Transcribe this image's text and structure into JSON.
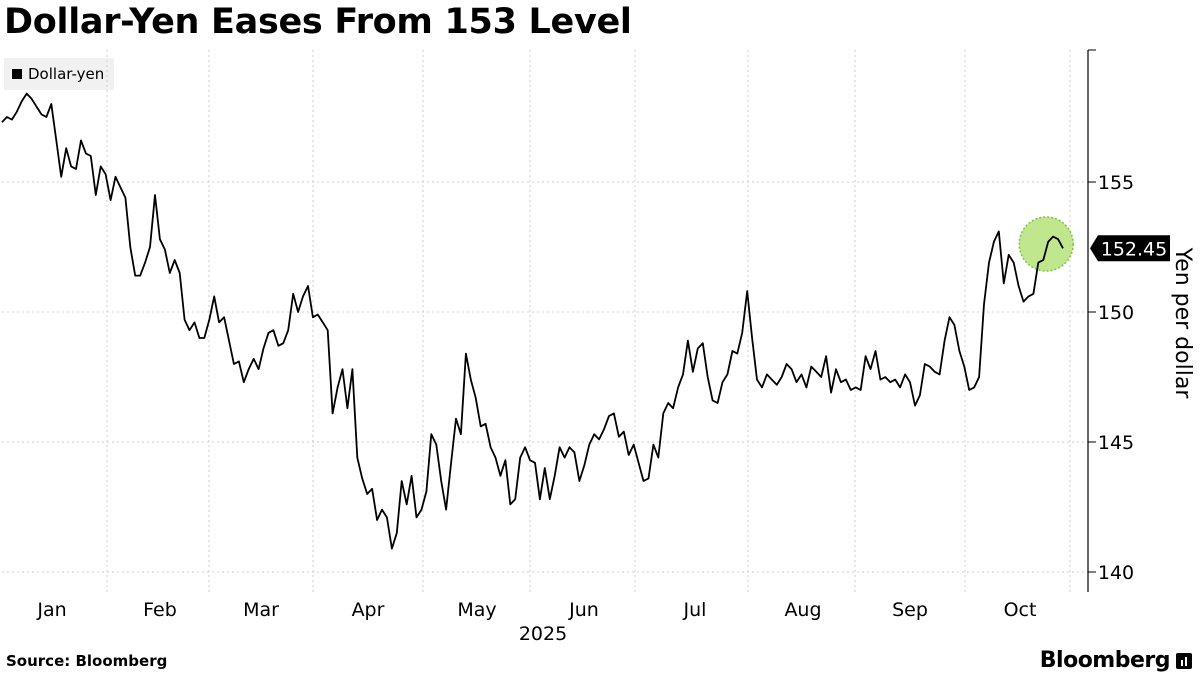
{
  "title": "Dollar-Yen Eases From 153 Level",
  "source": "Source: Bloomberg",
  "brand": "Bloomberg",
  "colors": {
    "line": "#000000",
    "grid": "#cfcfcf",
    "highlight": "#b5e27a",
    "highlight_stroke": "#7cc443"
  },
  "chart_data": {
    "type": "line",
    "series": [
      {
        "name": "Dollar-yen",
        "values": [
          157.3,
          157.5,
          157.4,
          157.7,
          158.1,
          158.4,
          158.2,
          157.9,
          157.6,
          157.5,
          158.0,
          156.6,
          155.2,
          156.3,
          155.6,
          155.5,
          156.6,
          156.1,
          156.0,
          154.5,
          155.6,
          155.3,
          154.3,
          155.2,
          154.8,
          154.4,
          152.5,
          151.4,
          151.4,
          151.9,
          152.5,
          154.5,
          152.8,
          152.4,
          151.5,
          152.0,
          151.5,
          149.7,
          149.3,
          149.6,
          149.0,
          149.0,
          149.7,
          150.6,
          149.6,
          149.8,
          148.9,
          148.0,
          148.1,
          147.3,
          147.8,
          148.2,
          147.8,
          148.6,
          149.2,
          149.3,
          148.7,
          148.8,
          149.3,
          150.7,
          150.0,
          150.6,
          151.0,
          149.8,
          149.9,
          149.6,
          149.3,
          146.1,
          147.1,
          147.8,
          146.3,
          147.8,
          144.4,
          143.6,
          143.0,
          143.2,
          142.0,
          142.4,
          142.1,
          140.9,
          141.5,
          143.5,
          142.6,
          143.7,
          142.1,
          142.4,
          143.1,
          145.3,
          144.9,
          143.5,
          142.4,
          144.2,
          145.9,
          145.3,
          148.4,
          147.4,
          146.7,
          145.6,
          145.7,
          144.8,
          144.4,
          143.7,
          144.3,
          142.6,
          142.8,
          144.4,
          144.8,
          144.3,
          144.2,
          142.8,
          144.0,
          142.8,
          143.7,
          144.8,
          144.4,
          144.8,
          144.6,
          143.5,
          144.1,
          144.9,
          145.3,
          145.1,
          145.5,
          146.0,
          146.1,
          145.2,
          145.4,
          144.5,
          144.9,
          144.2,
          143.5,
          143.6,
          144.9,
          144.4,
          146.1,
          146.5,
          146.3,
          147.1,
          147.6,
          148.9,
          147.7,
          148.6,
          148.8,
          147.5,
          146.6,
          146.5,
          147.3,
          147.6,
          148.5,
          148.4,
          149.2,
          150.8,
          149.0,
          147.4,
          147.1,
          147.6,
          147.4,
          147.2,
          147.5,
          148.0,
          147.8,
          147.3,
          147.6,
          147.1,
          147.9,
          147.7,
          147.5,
          148.3,
          146.9,
          147.8,
          147.3,
          147.4,
          147.0,
          147.1,
          147.0,
          148.3,
          147.8,
          148.5,
          147.4,
          147.5,
          147.3,
          147.4,
          147.1,
          147.6,
          147.3,
          146.4,
          146.8,
          148.0,
          147.9,
          147.7,
          147.6,
          148.9,
          149.8,
          149.5,
          148.5,
          147.9,
          147.0,
          147.1,
          147.5,
          150.3,
          151.9,
          152.7,
          153.1,
          151.1,
          152.2,
          151.9,
          151.0,
          150.4,
          150.6,
          150.7,
          151.9,
          152.0,
          152.7,
          152.9,
          152.8,
          152.45
        ]
      }
    ],
    "last_value_label": "152.45",
    "x_ticks": [
      "Jan",
      "Feb",
      "Mar",
      "Apr",
      "May",
      "Jun",
      "Jul",
      "Aug",
      "Sep",
      "Oct"
    ],
    "x_year_label": "2025",
    "y_ticks": [
      140,
      145,
      150,
      155
    ],
    "ylim": [
      139.5,
      160
    ],
    "ylabel": "Yen per dollar",
    "grid": true,
    "legend": "top-left",
    "highlight": "latest values circled"
  }
}
